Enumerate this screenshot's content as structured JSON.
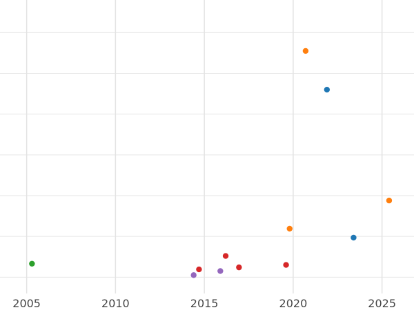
{
  "chart_data": {
    "type": "scatter",
    "title": "",
    "xlabel": "",
    "ylabel": "",
    "xlim": [
      2003.5,
      2026.8
    ],
    "ylim": [
      -0.4,
      6.8
    ],
    "x_ticks": [
      2005,
      2010,
      2015,
      2020,
      2025
    ],
    "x_tick_labels": [
      "2005",
      "2010",
      "2015",
      "2020",
      "2025"
    ],
    "y_gridlines": [
      0,
      1,
      2,
      3,
      4,
      5,
      6,
      7
    ],
    "grid": true,
    "legend": "none",
    "series": [
      {
        "color": "#1f77b4",
        "points": [
          {
            "x": 2021.9,
            "y": 4.6
          },
          {
            "x": 2023.4,
            "y": 0.97
          }
        ]
      },
      {
        "color": "#ff7f0e",
        "points": [
          {
            "x": 2020.7,
            "y": 5.55
          },
          {
            "x": 2019.8,
            "y": 1.19
          },
          {
            "x": 2025.4,
            "y": 1.88
          }
        ]
      },
      {
        "color": "#2ca02c",
        "points": [
          {
            "x": 2005.3,
            "y": 0.33
          }
        ]
      },
      {
        "color": "#d62728",
        "points": [
          {
            "x": 2014.7,
            "y": 0.19
          },
          {
            "x": 2016.2,
            "y": 0.52
          },
          {
            "x": 2016.95,
            "y": 0.24
          },
          {
            "x": 2019.6,
            "y": 0.3
          }
        ]
      },
      {
        "color": "#9467bd",
        "points": [
          {
            "x": 2014.4,
            "y": 0.05
          },
          {
            "x": 2015.9,
            "y": 0.15
          }
        ]
      }
    ]
  }
}
